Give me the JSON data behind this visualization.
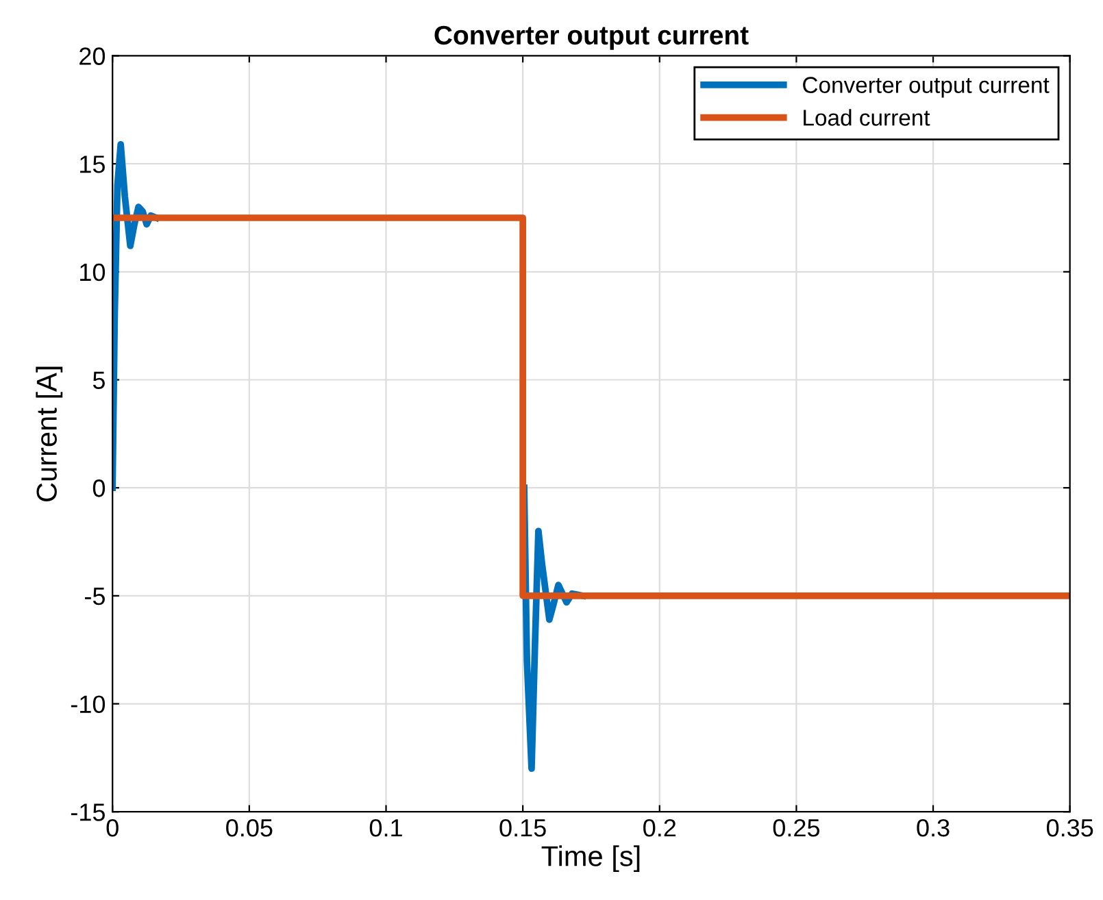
{
  "chart_data": {
    "type": "line",
    "title": "Converter output current",
    "xlabel": "Time [s]",
    "ylabel": "Current [A]",
    "xlim": [
      0,
      0.35
    ],
    "ylim": [
      -15,
      20
    ],
    "xticks": [
      0,
      0.05,
      0.1,
      0.15,
      0.2,
      0.25,
      0.3,
      0.35
    ],
    "yticks": [
      -15,
      -10,
      -5,
      0,
      5,
      10,
      15,
      20
    ],
    "grid": true,
    "legend": "top right",
    "line_style": "solid",
    "marker": "none",
    "series": [
      {
        "name": "Converter output current",
        "color": "#0072bd",
        "x": [
          0,
          0.0008,
          0.0018,
          0.003,
          0.0045,
          0.0065,
          0.008,
          0.0095,
          0.011,
          0.0125,
          0.014,
          0.016,
          0.02,
          0.15,
          0.1505,
          0.1515,
          0.1532,
          0.1545,
          0.1557,
          0.157,
          0.1597,
          0.1612,
          0.163,
          0.1645,
          0.166,
          0.168,
          0.172
        ],
        "values": [
          0,
          8,
          14,
          15.9,
          13.5,
          11.2,
          12.2,
          13.0,
          12.8,
          12.2,
          12.6,
          12.5,
          null,
          null,
          0,
          -8,
          -13,
          -7,
          -2,
          -3.5,
          -6.1,
          -5.4,
          -4.5,
          -4.9,
          -5.3,
          -4.9,
          -5
        ]
      },
      {
        "name": "Load current",
        "color": "#d95319",
        "x": [
          0,
          0.15,
          0.15,
          0.35
        ],
        "values": [
          12.5,
          12.5,
          -5,
          -5
        ]
      }
    ]
  }
}
